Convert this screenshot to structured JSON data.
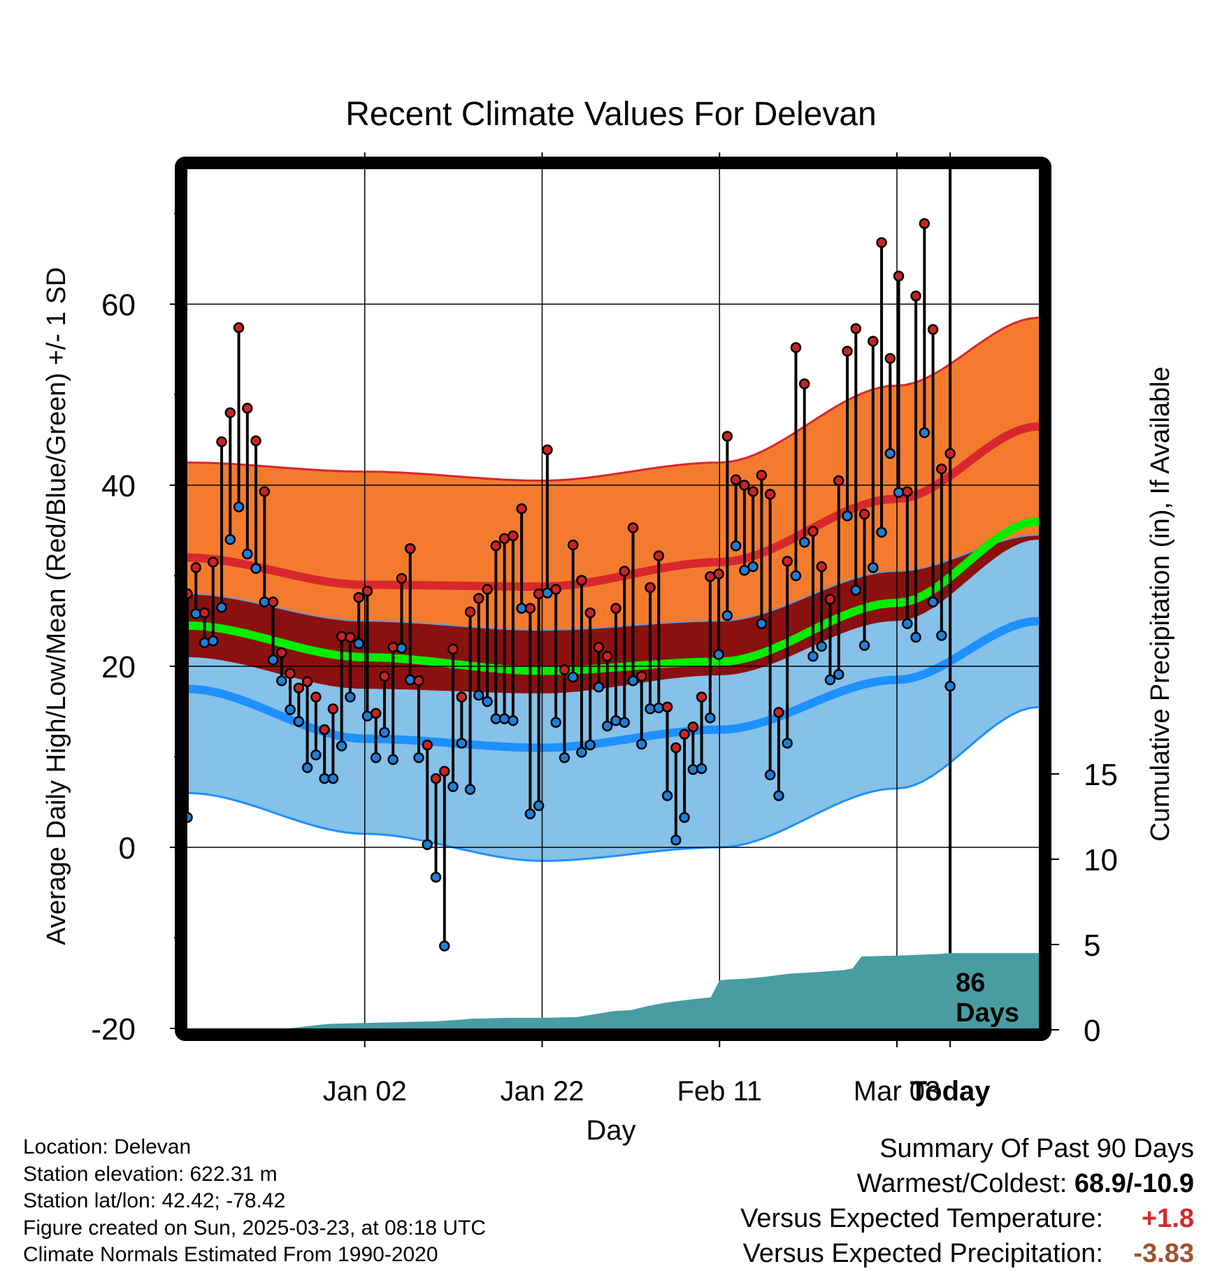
{
  "chart_data": {
    "type": "line",
    "title": "Recent Climate Values For Delevan",
    "xlabel": "Day",
    "ylabel_left": "Average Daily High/Low/Mean (Red/Blue/Green) +/- 1 SD",
    "ylabel_right": "Cumulative Precipitation (in), If Available",
    "x_ticks": [
      "Jan 02",
      "Jan 22",
      "Feb 11",
      "Mar 03",
      "Today"
    ],
    "y_ticks_left": [
      "-20",
      "0",
      "20",
      "40",
      "60"
    ],
    "y_ticks_right": [
      "0",
      "5",
      "10",
      "15"
    ],
    "ylim_left": [
      -20,
      74
    ],
    "ylim_right": [
      0,
      30
    ],
    "day_range": [
      -86,
      10
    ],
    "today_marker": {
      "day": 0,
      "label_line1": "86",
      "label_line2": "Days"
    },
    "normals": {
      "days": [
        -86,
        -66,
        -46,
        -26,
        -6,
        10
      ],
      "high_mean": [
        32.0,
        29.0,
        28.8,
        31.5,
        38.5,
        46.5
      ],
      "high_upper": [
        42.5,
        41.5,
        40.5,
        42.5,
        51.0,
        58.5
      ],
      "high_lower": [
        28.0,
        25.0,
        24.0,
        25.0,
        30.5,
        34.5
      ],
      "low_mean": [
        17.5,
        12.0,
        11.0,
        13.0,
        18.5,
        25.0
      ],
      "low_upper": [
        21.0,
        17.5,
        17.0,
        19.0,
        25.0,
        34.0
      ],
      "low_lower": [
        6.0,
        1.5,
        -1.5,
        0.0,
        6.5,
        15.5
      ],
      "mean": [
        24.5,
        21.0,
        19.5,
        20.5,
        27.0,
        36.0
      ],
      "colors": {
        "high_band": "#f47b2e",
        "high_line": "#d9272e",
        "low_band": "#85c1e9",
        "low_line": "#1e90ff",
        "overlap_band": "#8b1010",
        "mean_line": "#00ee00"
      }
    },
    "daily_observations": {
      "high_color": "#cc2222",
      "low_color": "#1f7fd6",
      "high": [
        28.0,
        30.9,
        25.9,
        31.5,
        44.8,
        48.0,
        57.4,
        48.5,
        44.9,
        39.3,
        27.1,
        21.5,
        19.2,
        17.6,
        18.3,
        16.6,
        13.0,
        15.3,
        23.3,
        23.2,
        27.6,
        28.3,
        14.8,
        18.9,
        22.1,
        29.7,
        33.0,
        18.4,
        11.3,
        7.6,
        8.4,
        21.9,
        16.6,
        26.0,
        27.5,
        28.5,
        33.3,
        34.1,
        34.4,
        37.4,
        26.4,
        28.0,
        43.9,
        28.5,
        19.6,
        33.4,
        29.5,
        25.9,
        22.1,
        21.1,
        26.4,
        30.5,
        35.3,
        18.9,
        28.7,
        32.2,
        15.5,
        11.0,
        12.5,
        13.3,
        16.6,
        29.9,
        30.2,
        45.4,
        40.6,
        40.0,
        39.3,
        41.1,
        39.0,
        14.9,
        31.6,
        55.2,
        51.2,
        34.9,
        31.0,
        27.4,
        40.5,
        54.8,
        57.3,
        36.8,
        55.9,
        66.8,
        54.0,
        63.1,
        39.3,
        60.9,
        68.9,
        57.2,
        41.8,
        43.5
      ],
      "low": [
        3.3,
        25.8,
        22.6,
        22.8,
        26.5,
        34.0,
        37.6,
        32.4,
        30.8,
        27.1,
        20.7,
        18.4,
        15.2,
        13.9,
        8.8,
        10.2,
        7.6,
        7.6,
        11.2,
        16.6,
        22.5,
        14.5,
        9.9,
        12.7,
        9.7,
        22.0,
        18.5,
        9.9,
        0.3,
        -3.3,
        -10.9,
        6.7,
        11.5,
        6.4,
        16.8,
        16.1,
        14.2,
        14.2,
        14.0,
        26.4,
        3.7,
        4.6,
        28.1,
        13.8,
        9.9,
        18.8,
        10.5,
        11.3,
        17.7,
        13.4,
        14.0,
        13.8,
        18.4,
        11.4,
        15.3,
        15.4,
        5.7,
        0.8,
        3.3,
        8.6,
        8.7,
        14.3,
        21.3,
        25.6,
        33.3,
        30.6,
        31.0,
        24.7,
        8.0,
        5.7,
        11.5,
        30.0,
        33.7,
        21.1,
        22.2,
        18.5,
        19.1,
        36.6,
        28.4,
        22.3,
        30.9,
        34.8,
        43.5,
        39.2,
        24.7,
        23.2,
        45.8,
        27.1,
        23.4,
        17.8
      ]
    },
    "precipitation": {
      "color": "#489da3",
      "days": [
        -86,
        -76,
        -71,
        -70,
        -66,
        -62,
        -58,
        -55,
        -54,
        -50,
        -46,
        -42,
        -38,
        -36,
        -34,
        -32,
        -29,
        -27,
        -26,
        -25,
        -23,
        -21,
        -18,
        -16,
        -12,
        -11,
        -10,
        -6,
        -1,
        0,
        10
      ],
      "cumulative": [
        0.0,
        0.0,
        0.3,
        0.35,
        0.4,
        0.45,
        0.5,
        0.6,
        0.65,
        0.7,
        0.7,
        0.75,
        1.1,
        1.15,
        1.4,
        1.6,
        1.8,
        1.9,
        2.9,
        2.95,
        3.0,
        3.1,
        3.3,
        3.35,
        3.5,
        3.6,
        4.3,
        4.35,
        4.45,
        4.5,
        4.5
      ]
    }
  },
  "footer_info": {
    "location": "Location: Delevan",
    "elevation": "Station elevation: 622.31 m",
    "latlon": "Station lat/lon: 42.42; -78.42",
    "created": "Figure created on Sun, 2025-03-23, at 08:18 UTC",
    "normals": "Climate Normals Estimated From 1990-2020"
  },
  "summary": {
    "title": "Summary Of Past 90 Days",
    "warm_cold_label": "Warmest/Coldest: ",
    "warm_cold_value": "68.9/-10.9",
    "temp_label": "Versus Expected Temperature:",
    "temp_value": "+1.8",
    "temp_color": "#d42a2a",
    "precip_label": "Versus Expected Precipitation:",
    "precip_value": "-3.83",
    "precip_color": "#a0522d"
  }
}
